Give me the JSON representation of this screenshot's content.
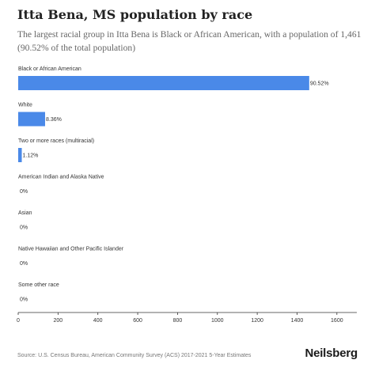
{
  "header": {
    "title": "Itta Bena, MS population by race",
    "subtitle": "The largest racial group in Itta Bena is Black or African American, with a population of 1,461 (90.52% of the total population)"
  },
  "footer": {
    "source": "Source: U.S. Census Bureau, American Community Survey (ACS) 2017-2021 5-Year Estimates",
    "brand": "Neilsberg"
  },
  "colors": {
    "bar": "#4a89e8",
    "axis": "#333333",
    "text": "#333333"
  },
  "chart_data": {
    "type": "bar",
    "orientation": "horizontal",
    "title": "Itta Bena, MS population by race",
    "xlabel": "",
    "ylabel": "",
    "xlim": [
      0,
      1700
    ],
    "xticks": [
      0,
      200,
      400,
      600,
      800,
      1000,
      1200,
      1400,
      1600
    ],
    "grid": false,
    "categories": [
      "Black or African American",
      "White",
      "Two or more races (multiracial)",
      "American Indian and Alaska Native",
      "Asian",
      "Native Hawaiian and Other Pacific Islander",
      "Some other race"
    ],
    "values": [
      1461,
      135,
      18,
      0,
      0,
      0,
      0
    ],
    "labels": [
      "90.52%",
      "8.36%",
      "1.12%",
      "0%",
      "0%",
      "0%",
      "0%"
    ]
  }
}
